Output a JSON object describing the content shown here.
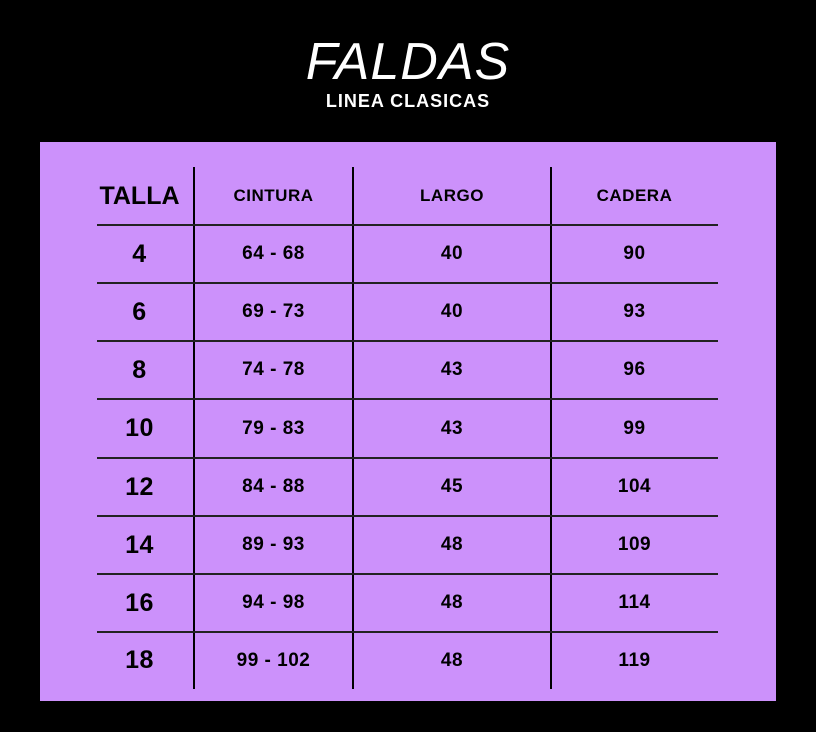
{
  "title": "FALDAS",
  "subtitle": "LINEA CLASICAS",
  "colors": {
    "background": "#000000",
    "panel": "#cc91fb",
    "text": "#000000",
    "title": "#ffffff"
  },
  "table": {
    "headers": [
      "TALLA",
      "CINTURA",
      "LARGO",
      "CADERA"
    ],
    "rows": [
      [
        "4",
        "64 - 68",
        "40",
        "90"
      ],
      [
        "6",
        "69 - 73",
        "40",
        "93"
      ],
      [
        "8",
        "74 - 78",
        "43",
        "96"
      ],
      [
        "10",
        "79 - 83",
        "43",
        "99"
      ],
      [
        "12",
        "84 - 88",
        "45",
        "104"
      ],
      [
        "14",
        "89 - 93",
        "48",
        "109"
      ],
      [
        "16",
        "94 - 98",
        "48",
        "114"
      ],
      [
        "18",
        "99 - 102",
        "48",
        "119"
      ]
    ]
  }
}
